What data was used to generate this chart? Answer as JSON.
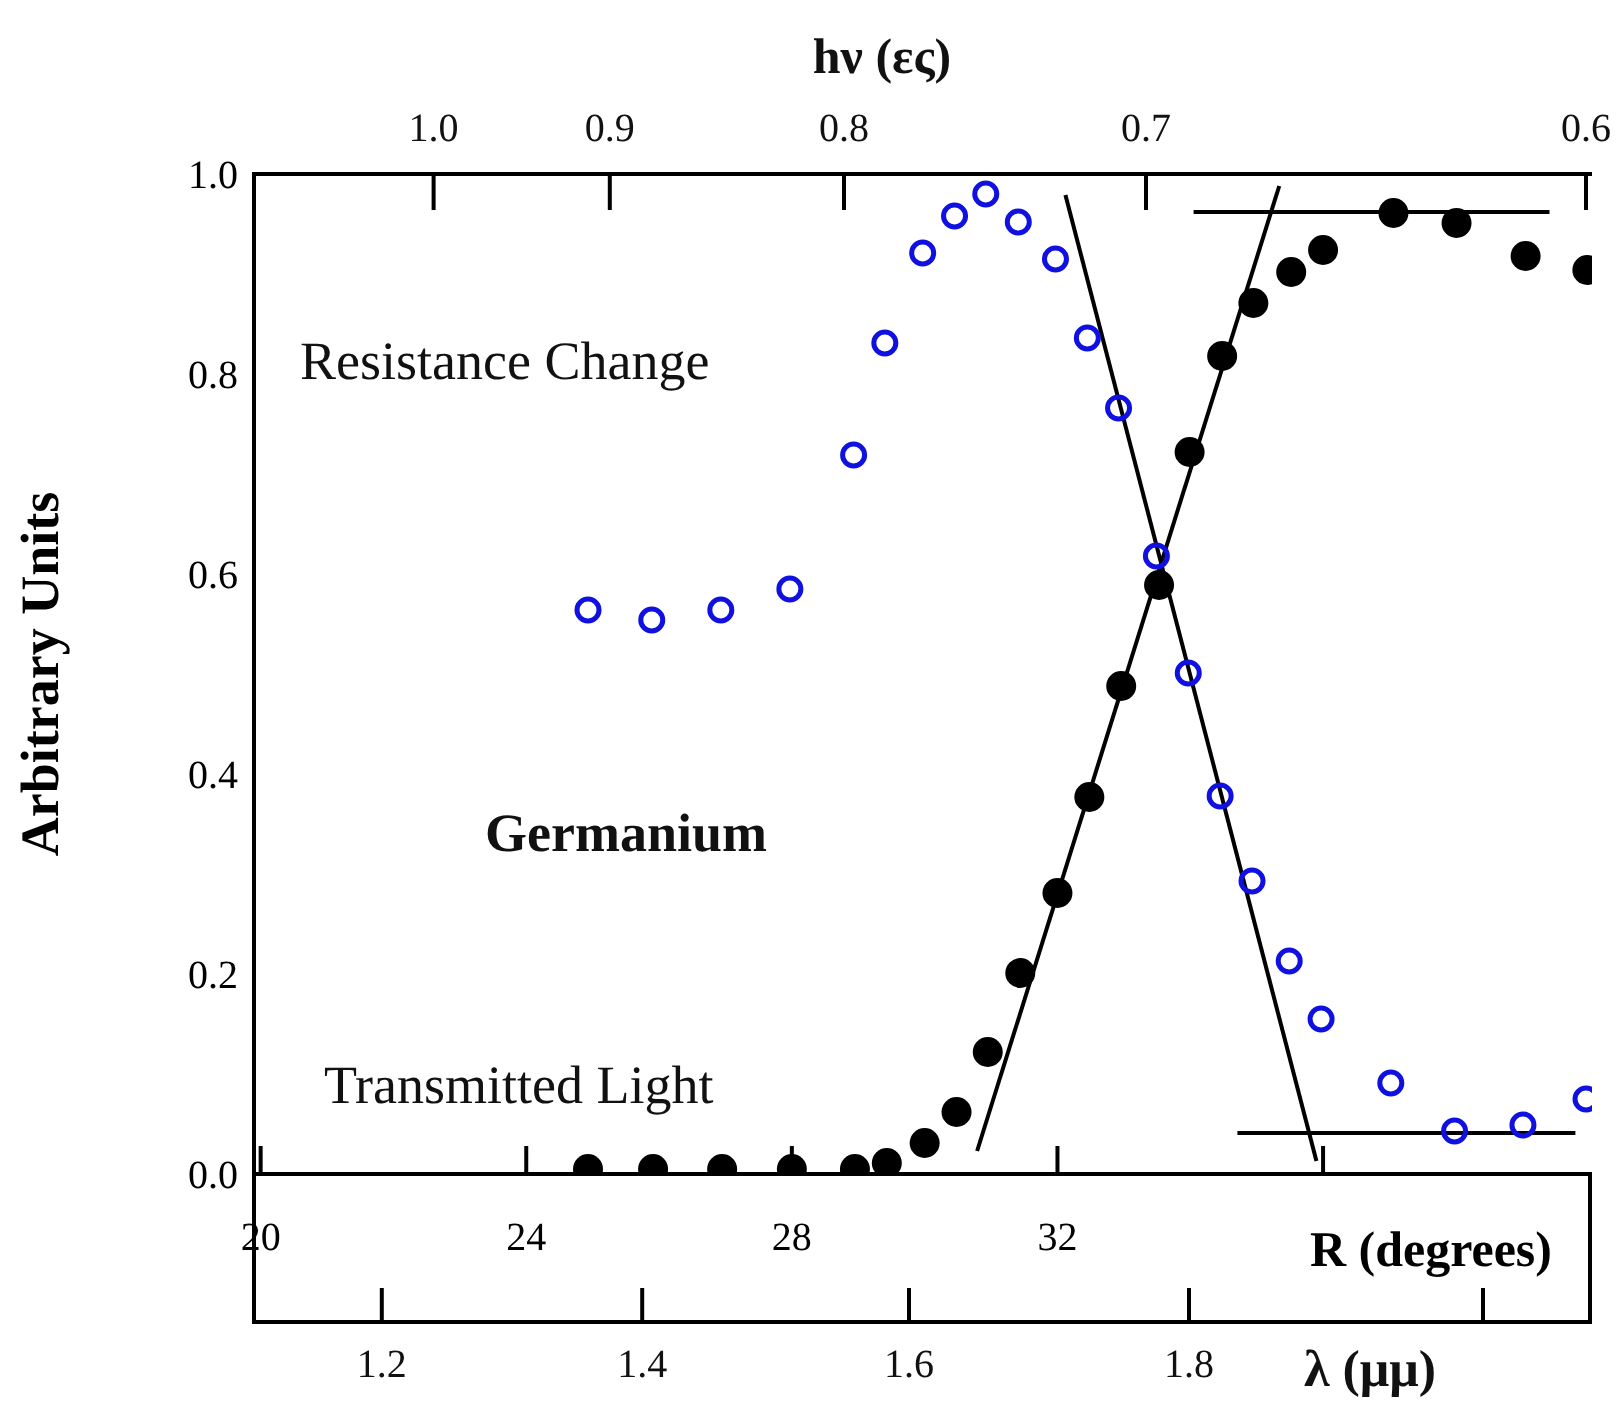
{
  "chart_data": {
    "type": "scatter",
    "xlabel": "R (degrees)",
    "ylabel": "Arbitrary Units",
    "xlim": [
      19.9,
      40.05
    ],
    "xticks": [
      20,
      24,
      28,
      32,
      {
        "value": 36,
        "label": null
      }
    ],
    "ylim": [
      0,
      1
    ],
    "yticks": [
      {
        "value": 0,
        "label": "0.0"
      },
      0.2,
      0.4,
      0.6,
      0.8,
      {
        "value": 1,
        "label": "1.0"
      }
    ],
    "marker": "circle",
    "annotations": [
      "Resistance Change",
      "Germanium",
      "Transmitted Light",
      "1.2",
      "1.4",
      "1.6",
      "1.8",
      "λ (μμ)",
      "1.0",
      "0.9",
      "0.8",
      "0.7",
      "0.6",
      "hν (ες)"
    ],
    "series": [
      {
        "color": "#1010e0",
        "x": [
          24.93,
          25.89,
          26.93,
          27.97,
          28.93,
          29.4,
          29.97,
          30.45,
          30.92,
          31.41,
          31.97,
          32.45,
          32.92,
          33.49,
          33.97,
          34.45,
          34.93,
          35.49,
          35.97,
          37.02,
          37.98,
          39.01,
          39.96
        ],
        "values": [
          0.564,
          0.554,
          0.564,
          0.585,
          0.719,
          0.831,
          0.921,
          0.958,
          0.98,
          0.952,
          0.915,
          0.836,
          0.766,
          0.618,
          0.501,
          0.378,
          0.293,
          0.213,
          0.155,
          0.091,
          0.043,
          0.049,
          0.075
        ]
      },
      {
        "color": "#000000",
        "x": [
          24.93,
          25.91,
          26.95,
          28.0,
          28.95,
          29.43,
          30.0,
          30.48,
          30.95,
          31.44,
          32.0,
          32.48,
          32.96,
          33.53,
          33.99,
          34.48,
          34.95,
          35.52,
          36.0,
          37.06,
          38.01,
          39.05,
          39.98
        ],
        "values": [
          0.005,
          0.005,
          0.005,
          0.005,
          0.005,
          0.011,
          0.031,
          0.062,
          0.122,
          0.201,
          0.281,
          0.377,
          0.488,
          0.589,
          0.722,
          0.818,
          0.871,
          0.902,
          0.924,
          0.961,
          0.951,
          0.918,
          0.904
        ]
      },
      {
        "type": "line",
        "marker": "none",
        "color": "#000000",
        "x": [
          30.79,
          35.34
        ],
        "values": [
          0.023,
          0.988
        ]
      },
      {
        "type": "line",
        "marker": "none",
        "color": "#000000",
        "x": [
          32.12,
          35.9
        ],
        "values": [
          0.979,
          0.013
        ]
      },
      {
        "type": "line",
        "marker": "none",
        "color": "#000000",
        "x": [
          34.05,
          39.41
        ],
        "values": [
          0.962,
          0.962
        ]
      },
      {
        "type": "line",
        "marker": "none",
        "color": "#000000",
        "x": [
          34.71,
          39.8
        ],
        "values": [
          0.041,
          0.041
        ]
      }
    ]
  }
}
